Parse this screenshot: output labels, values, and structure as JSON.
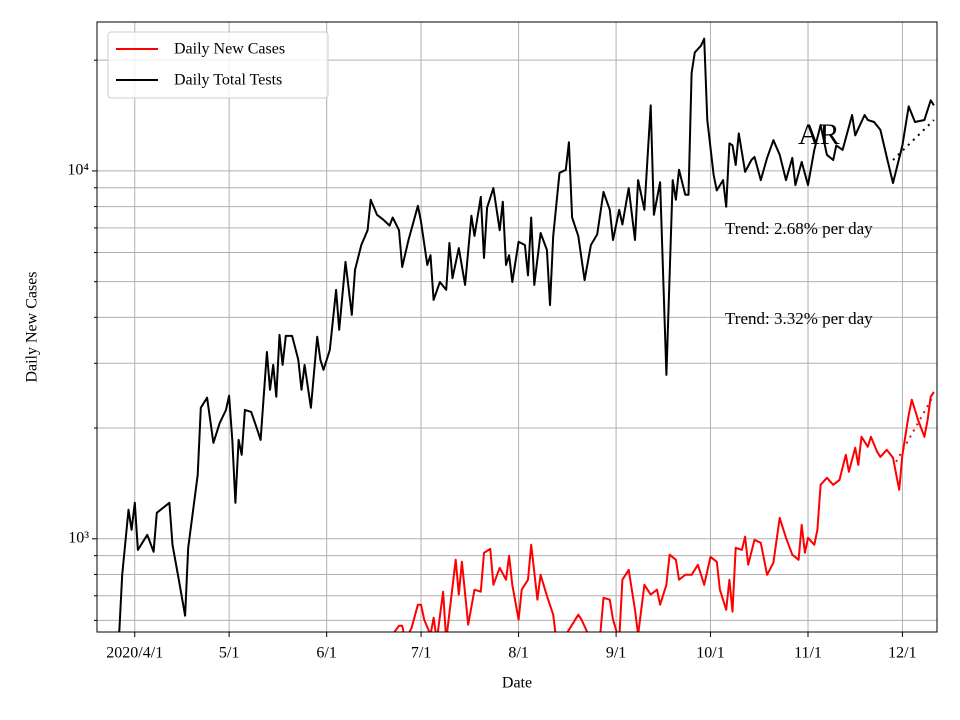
{
  "chart_data": {
    "type": "line",
    "xlabel": "Date",
    "ylabel": "Daily New Cases",
    "log_y": true,
    "grid": true,
    "legend": "upper left",
    "xlim": [
      "2020-03-20",
      "2020-12-12"
    ],
    "xticks": [
      {
        "value": "2020-04-01",
        "label": "2020/4/1"
      },
      {
        "value": "2020-05-01",
        "label": "5/1"
      },
      {
        "value": "2020-06-01",
        "label": "6/1"
      },
      {
        "value": "2020-07-01",
        "label": "7/1"
      },
      {
        "value": "2020-08-01",
        "label": "8/1"
      },
      {
        "value": "2020-09-01",
        "label": "9/1"
      },
      {
        "value": "2020-10-01",
        "label": "10/1"
      },
      {
        "value": "2020-11-01",
        "label": "11/1"
      },
      {
        "value": "2020-12-01",
        "label": "12/1"
      }
    ],
    "ylim": [
      558,
      25400
    ],
    "yticks": [
      {
        "value": 1000,
        "label": "10³"
      },
      {
        "value": 10000,
        "label": "10⁴"
      }
    ],
    "minor_yticks": [
      600,
      700,
      800,
      900,
      2000,
      3000,
      4000,
      5000,
      6000,
      7000,
      8000,
      9000,
      20000
    ],
    "series": [
      {
        "name": "Daily New Cases",
        "color": "#ff0000",
        "x": [
          "2020-06-22",
          "2020-06-24",
          "2020-06-25",
          "2020-06-26",
          "2020-06-28",
          "2020-06-30",
          "2020-07-01",
          "2020-07-02",
          "2020-07-04",
          "2020-07-05",
          "2020-07-06",
          "2020-07-08",
          "2020-07-09",
          "2020-07-12",
          "2020-07-13",
          "2020-07-14",
          "2020-07-16",
          "2020-07-18",
          "2020-07-20",
          "2020-07-21",
          "2020-07-23",
          "2020-07-24",
          "2020-07-26",
          "2020-07-28",
          "2020-07-29",
          "2020-07-30",
          "2020-08-01",
          "2020-08-02",
          "2020-08-04",
          "2020-08-05",
          "2020-08-07",
          "2020-08-08",
          "2020-08-10",
          "2020-08-12",
          "2020-08-13",
          "2020-08-16",
          "2020-08-20",
          "2020-08-21",
          "2020-08-24",
          "2020-08-27",
          "2020-08-28",
          "2020-08-30",
          "2020-08-31",
          "2020-09-02",
          "2020-09-03",
          "2020-09-05",
          "2020-09-07",
          "2020-09-08",
          "2020-09-10",
          "2020-09-12",
          "2020-09-14",
          "2020-09-15",
          "2020-09-17",
          "2020-09-18",
          "2020-09-20",
          "2020-09-21",
          "2020-09-23",
          "2020-09-25",
          "2020-09-27",
          "2020-09-29",
          "2020-10-01",
          "2020-10-03",
          "2020-10-04",
          "2020-10-06",
          "2020-10-07",
          "2020-10-08",
          "2020-10-09",
          "2020-10-11",
          "2020-10-12",
          "2020-10-13",
          "2020-10-15",
          "2020-10-17",
          "2020-10-19",
          "2020-10-21",
          "2020-10-23",
          "2020-10-25",
          "2020-10-27",
          "2020-10-29",
          "2020-10-30",
          "2020-10-31",
          "2020-11-01",
          "2020-11-03",
          "2020-11-04",
          "2020-11-05",
          "2020-11-07",
          "2020-11-09",
          "2020-11-11",
          "2020-11-13",
          "2020-11-14",
          "2020-11-16",
          "2020-11-17",
          "2020-11-18",
          "2020-11-20",
          "2020-11-21",
          "2020-11-23",
          "2020-11-24",
          "2020-11-26",
          "2020-11-28",
          "2020-11-30",
          "2020-12-01",
          "2020-12-03",
          "2020-12-04",
          "2020-12-06",
          "2020-12-08",
          "2020-12-09",
          "2020-12-10",
          "2020-12-11"
        ],
        "values": [
          550,
          580,
          580,
          530,
          573,
          662,
          662,
          603,
          548,
          610,
          530,
          718,
          530,
          877,
          705,
          866,
          584,
          727,
          718,
          916,
          939,
          750,
          834,
          774,
          899,
          750,
          603,
          727,
          774,
          963,
          683,
          798,
          700,
          622,
          530,
          548,
          622,
          603,
          530,
          555,
          691,
          683,
          603,
          530,
          774,
          823,
          641,
          548,
          750,
          705,
          727,
          662,
          750,
          905,
          877,
          774,
          798,
          798,
          850,
          750,
          893,
          866,
          727,
          641,
          774,
          634,
          945,
          933,
          1013,
          850,
          994,
          975,
          798,
          861,
          1140,
          1006,
          905,
          877,
          1091,
          916,
          1006,
          963,
          1058,
          1402,
          1465,
          1402,
          1446,
          1692,
          1521,
          1769,
          1588,
          1894,
          1779,
          1894,
          1723,
          1670,
          1746,
          1660,
          1359,
          1692,
          2172,
          2388,
          2103,
          1894,
          2103,
          2432,
          2508
        ]
      },
      {
        "name": "Daily Total Tests",
        "color": "#000000",
        "x": [
          "2020-03-27",
          "2020-03-28",
          "2020-03-30",
          "2020-03-31",
          "2020-04-01",
          "2020-04-02",
          "2020-04-05",
          "2020-04-07",
          "2020-04-08",
          "2020-04-12",
          "2020-04-13",
          "2020-04-15",
          "2020-04-17",
          "2020-04-18",
          "2020-04-21",
          "2020-04-22",
          "2020-04-24",
          "2020-04-26",
          "2020-04-28",
          "2020-04-30",
          "2020-05-01",
          "2020-05-02",
          "2020-05-03",
          "2020-05-04",
          "2020-05-05",
          "2020-05-06",
          "2020-05-08",
          "2020-05-10",
          "2020-05-11",
          "2020-05-13",
          "2020-05-14",
          "2020-05-15",
          "2020-05-16",
          "2020-05-17",
          "2020-05-18",
          "2020-05-19",
          "2020-05-21",
          "2020-05-23",
          "2020-05-24",
          "2020-05-25",
          "2020-05-27",
          "2020-05-29",
          "2020-05-30",
          "2020-05-31",
          "2020-06-02",
          "2020-06-04",
          "2020-06-05",
          "2020-06-07",
          "2020-06-09",
          "2020-06-10",
          "2020-06-12",
          "2020-06-14",
          "2020-06-15",
          "2020-06-17",
          "2020-06-19",
          "2020-06-21",
          "2020-06-22",
          "2020-06-24",
          "2020-06-25",
          "2020-06-27",
          "2020-06-30",
          "2020-07-01",
          "2020-07-03",
          "2020-07-04",
          "2020-07-05",
          "2020-07-07",
          "2020-07-09",
          "2020-07-10",
          "2020-07-11",
          "2020-07-13",
          "2020-07-15",
          "2020-07-17",
          "2020-07-18",
          "2020-07-20",
          "2020-07-21",
          "2020-07-22",
          "2020-07-24",
          "2020-07-26",
          "2020-07-27",
          "2020-07-28",
          "2020-07-29",
          "2020-07-30",
          "2020-08-01",
          "2020-08-03",
          "2020-08-04",
          "2020-08-05",
          "2020-08-06",
          "2020-08-08",
          "2020-08-10",
          "2020-08-11",
          "2020-08-12",
          "2020-08-14",
          "2020-08-16",
          "2020-08-17",
          "2020-08-18",
          "2020-08-20",
          "2020-08-22",
          "2020-08-24",
          "2020-08-26",
          "2020-08-28",
          "2020-08-30",
          "2020-08-31",
          "2020-09-02",
          "2020-09-03",
          "2020-09-05",
          "2020-09-07",
          "2020-09-08",
          "2020-09-10",
          "2020-09-12",
          "2020-09-13",
          "2020-09-15",
          "2020-09-17",
          "2020-09-19",
          "2020-09-20",
          "2020-09-21",
          "2020-09-23",
          "2020-09-24",
          "2020-09-25",
          "2020-09-26",
          "2020-09-28",
          "2020-09-29",
          "2020-09-30",
          "2020-10-02",
          "2020-10-03",
          "2020-10-05",
          "2020-10-06",
          "2020-10-07",
          "2020-10-08",
          "2020-10-09",
          "2020-10-10",
          "2020-10-12",
          "2020-10-14",
          "2020-10-15",
          "2020-10-17",
          "2020-10-19",
          "2020-10-21",
          "2020-10-23",
          "2020-10-25",
          "2020-10-27",
          "2020-10-28",
          "2020-10-30",
          "2020-11-01",
          "2020-11-03",
          "2020-11-05",
          "2020-11-07",
          "2020-11-09",
          "2020-11-10",
          "2020-11-12",
          "2020-11-15",
          "2020-11-16",
          "2020-11-19",
          "2020-11-20",
          "2020-11-22",
          "2020-11-24",
          "2020-11-26",
          "2020-11-28",
          "2020-12-01",
          "2020-12-03",
          "2020-12-05",
          "2020-12-08",
          "2020-12-10",
          "2020-12-11"
        ],
        "values": [
          540,
          798,
          1199,
          1058,
          1253,
          933,
          1025,
          922,
          1177,
          1253,
          963,
          774,
          618,
          945,
          1492,
          2271,
          2418,
          1822,
          2063,
          2241,
          2449,
          1857,
          1253,
          1857,
          1692,
          2241,
          2213,
          1975,
          1857,
          3220,
          2541,
          2970,
          2432,
          3582,
          2970,
          3560,
          3560,
          3066,
          2541,
          2970,
          2271,
          3540,
          3066,
          2880,
          3260,
          4750,
          3700,
          5660,
          4060,
          5380,
          6290,
          6900,
          8350,
          7600,
          7370,
          7100,
          7470,
          6900,
          5480,
          6490,
          8040,
          7280,
          5550,
          5900,
          4460,
          4990,
          4750,
          6370,
          5110,
          6170,
          4900,
          7550,
          6660,
          8500,
          5800,
          7950,
          8980,
          6900,
          8250,
          5550,
          5900,
          4990,
          6420,
          6290,
          5200,
          7470,
          4900,
          6780,
          6100,
          4320,
          6650,
          9880,
          10070,
          11960,
          7470,
          6650,
          5050,
          6290,
          6720,
          8770,
          7840,
          6490,
          7840,
          7150,
          8980,
          6490,
          9440,
          7840,
          15070,
          7600,
          9320,
          2790,
          9440,
          8350,
          10070,
          8610,
          8610,
          18460,
          21000,
          21900,
          22900,
          13750,
          9760,
          8850,
          9440,
          7990,
          11880,
          11730,
          10380,
          12650,
          9940,
          10710,
          10920,
          9440,
          10850,
          12120,
          11060,
          9440,
          10850,
          9150,
          10580,
          9150,
          11410,
          13330,
          11060,
          10710,
          11730,
          11410,
          14190,
          12490,
          14190,
          13750,
          13580,
          12930,
          10920,
          9270,
          11730,
          14980,
          13580,
          13750,
          15560,
          15070
        ]
      }
    ],
    "trend_lines": [
      {
        "color": "#000000",
        "x": [
          "2020-11-28",
          "2020-12-11"
        ],
        "values": [
          10710,
          13750
        ]
      },
      {
        "color": "#ff0000",
        "x": [
          "2020-11-29",
          "2020-12-11"
        ],
        "values": [
          1619,
          2462
        ]
      }
    ],
    "annotations": [
      {
        "text": "AR"
      },
      {
        "text": "Trend: 2.68% per day"
      },
      {
        "text": "Trend: 3.32% per day"
      }
    ]
  }
}
